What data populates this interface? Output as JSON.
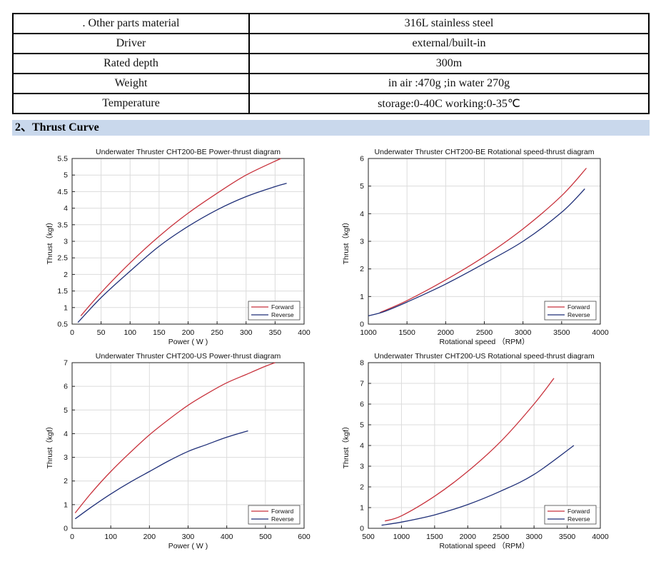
{
  "spec_table": {
    "rows": [
      {
        "label": ". Other parts material",
        "value": "316L stainless steel"
      },
      {
        "label": "Driver",
        "value": "external/built-in"
      },
      {
        "label": "Rated depth",
        "value": "300m"
      },
      {
        "label": "Weight",
        "value": "in air :470g ;in water 270g"
      },
      {
        "label": "Temperature",
        "value": "storage:0-40C working:0-35℃"
      }
    ]
  },
  "section_title": "2、Thrust Curve",
  "chart_data": [
    {
      "type": "line",
      "title": "Underwater Thruster CHT200-BE Power-thrust diagram",
      "xlabel": "Power ( W )",
      "ylabel": "Thrust（kgf）",
      "xlim": [
        0,
        400
      ],
      "ylim": [
        0.5,
        5.5
      ],
      "xticks": [
        0,
        50,
        100,
        150,
        200,
        250,
        300,
        350,
        400
      ],
      "yticks": [
        0.5,
        1,
        1.5,
        2,
        2.5,
        3,
        3.5,
        4,
        4.5,
        5,
        5.5
      ],
      "grid": true,
      "legend": "bottom-right",
      "series": [
        {
          "name": "Forward",
          "color": "#c8323c",
          "x": [
            15,
            50,
            100,
            150,
            200,
            250,
            300,
            360
          ],
          "y": [
            0.75,
            1.45,
            2.35,
            3.15,
            3.85,
            4.45,
            5.0,
            5.5
          ]
        },
        {
          "name": "Reverse",
          "color": "#1f2f78",
          "x": [
            10,
            50,
            100,
            150,
            200,
            250,
            300,
            350,
            370
          ],
          "y": [
            0.55,
            1.3,
            2.1,
            2.85,
            3.45,
            3.95,
            4.35,
            4.65,
            4.75
          ]
        }
      ]
    },
    {
      "type": "line",
      "title": "Underwater Thruster CHT200-BE Rotational speed-thrust diagram",
      "xlabel": "Rotational speed （RPM）",
      "ylabel": "Thrust（kgf）",
      "xlim": [
        1000,
        4000
      ],
      "ylim": [
        0,
        6
      ],
      "xticks": [
        1000,
        1500,
        2000,
        2500,
        3000,
        3500,
        4000
      ],
      "yticks": [
        0,
        1,
        2,
        3,
        4,
        5,
        6
      ],
      "grid": true,
      "legend": "bottom-right",
      "series": [
        {
          "name": "Forward",
          "color": "#c8323c",
          "x": [
            1150,
            1500,
            2000,
            2500,
            3000,
            3500,
            3820
          ],
          "y": [
            0.42,
            0.85,
            1.6,
            2.45,
            3.45,
            4.65,
            5.65
          ]
        },
        {
          "name": "Reverse",
          "color": "#1f2f78",
          "x": [
            1000,
            1200,
            1500,
            2000,
            2500,
            3000,
            3500,
            3800
          ],
          "y": [
            0.3,
            0.45,
            0.8,
            1.45,
            2.2,
            3.0,
            4.05,
            4.9
          ]
        }
      ]
    },
    {
      "type": "line",
      "title": "Underwater Thruster CHT200-US Power-thrust diagram",
      "xlabel": "Power ( W )",
      "ylabel": "Thrust（kgf）",
      "xlim": [
        0,
        600
      ],
      "ylim": [
        0,
        7
      ],
      "xticks": [
        0,
        100,
        200,
        300,
        400,
        500,
        600
      ],
      "yticks": [
        0,
        1,
        2,
        3,
        4,
        5,
        6,
        7
      ],
      "grid": true,
      "legend": "bottom-right",
      "series": [
        {
          "name": "Forward",
          "color": "#c8323c",
          "x": [
            8,
            50,
            100,
            150,
            200,
            250,
            300,
            350,
            400,
            450,
            500,
            525
          ],
          "y": [
            0.65,
            1.5,
            2.4,
            3.2,
            3.95,
            4.6,
            5.2,
            5.7,
            6.15,
            6.5,
            6.85,
            7.0
          ]
        },
        {
          "name": "Reverse",
          "color": "#1f2f78",
          "x": [
            8,
            50,
            100,
            150,
            200,
            250,
            300,
            350,
            400,
            455
          ],
          "y": [
            0.4,
            0.9,
            1.45,
            1.95,
            2.4,
            2.85,
            3.25,
            3.55,
            3.85,
            4.12
          ]
        }
      ]
    },
    {
      "type": "line",
      "title": "Underwater Thruster CHT200-US Rotational speed-thrust diagram",
      "xlabel": "Rotational speed （RPM）",
      "ylabel": "Thrust（kgf）",
      "xlim": [
        500,
        4000
      ],
      "ylim": [
        0,
        8
      ],
      "xticks": [
        500,
        1000,
        1500,
        2000,
        2500,
        3000,
        3500,
        4000
      ],
      "yticks": [
        0,
        1,
        2,
        3,
        4,
        5,
        6,
        7,
        8
      ],
      "grid": true,
      "legend": "bottom-right",
      "series": [
        {
          "name": "Forward",
          "color": "#c8323c",
          "x": [
            750,
            1000,
            1500,
            2000,
            2500,
            3000,
            3300
          ],
          "y": [
            0.35,
            0.6,
            1.55,
            2.75,
            4.2,
            6.0,
            7.25
          ]
        },
        {
          "name": "Reverse",
          "color": "#1f2f78",
          "x": [
            700,
            1000,
            1500,
            2000,
            2500,
            3000,
            3600
          ],
          "y": [
            0.15,
            0.3,
            0.65,
            1.15,
            1.8,
            2.6,
            4.0
          ]
        }
      ]
    }
  ]
}
